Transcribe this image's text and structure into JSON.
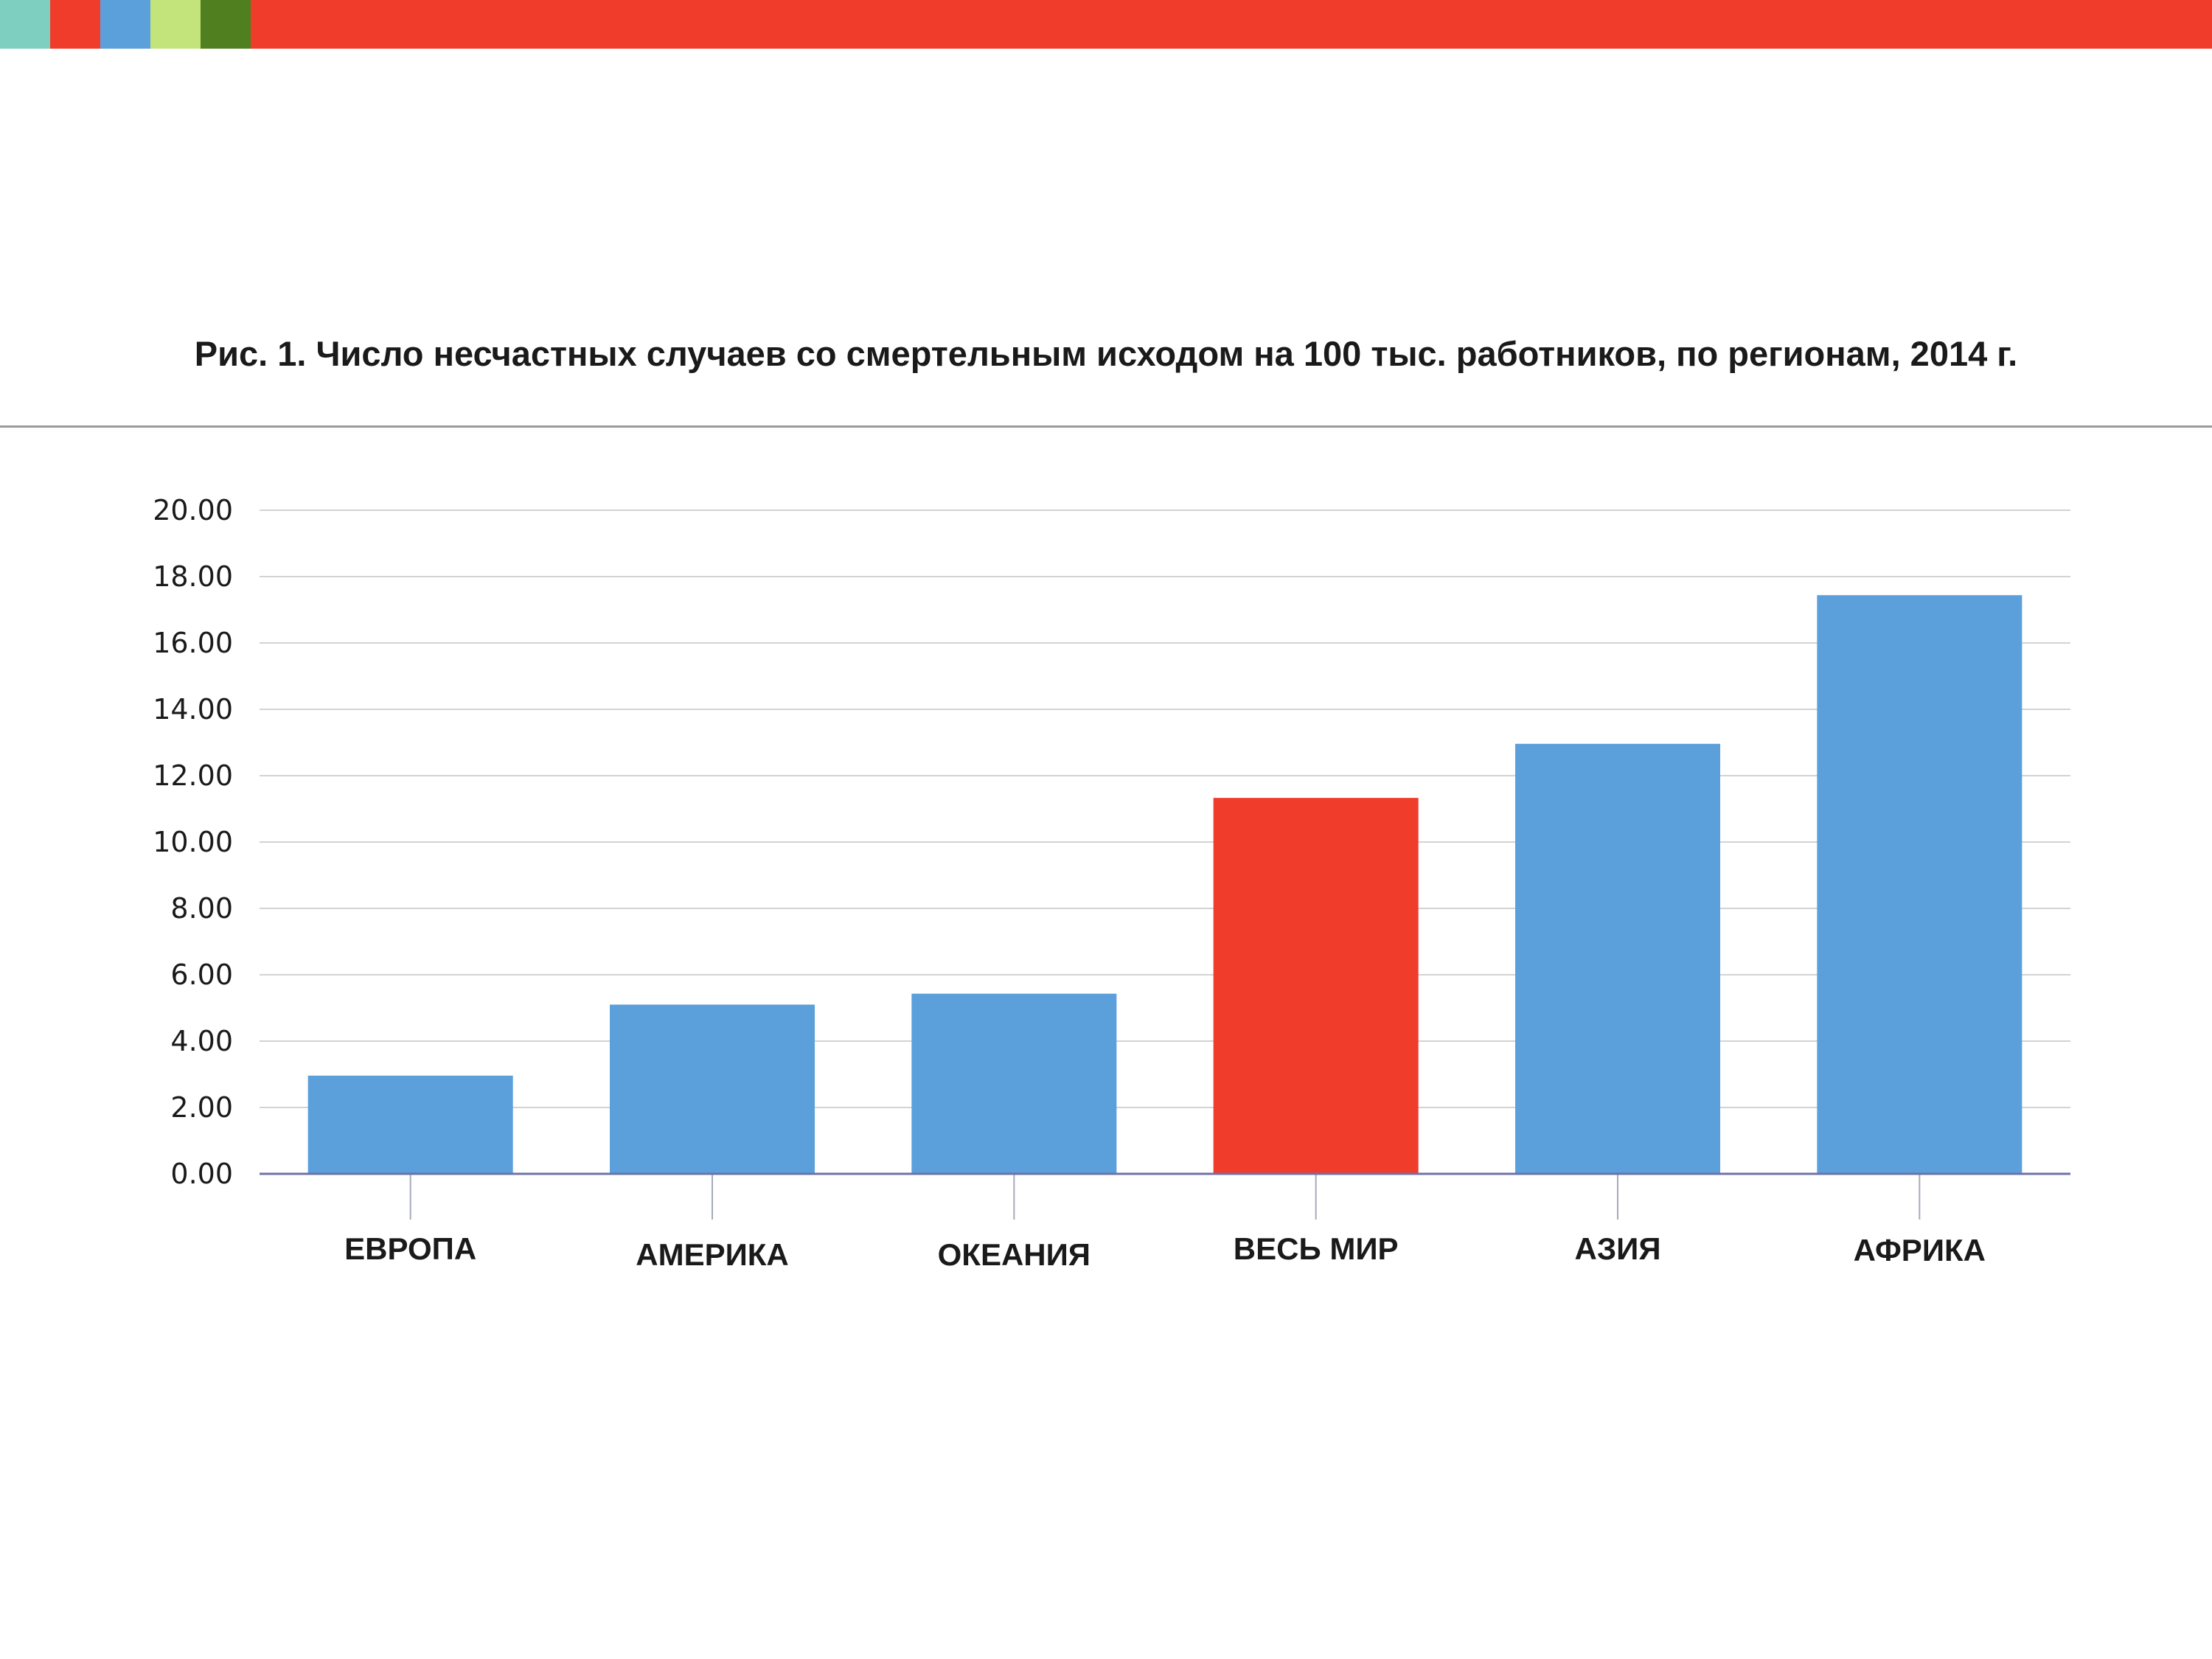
{
  "header": {
    "stripe_colors": [
      "#7ecfc0",
      "#f03c2b",
      "#5b9fdb",
      "#c3e37b",
      "#4f7f1e",
      "#f03c2b"
    ]
  },
  "chart_data": {
    "type": "bar",
    "title": "Рис. 1. Число несчастных случаев со смертельным исходом на 100 тыс. работников, по регионам, 2014 г.",
    "categories": [
      "ЕВРОПА",
      "АМЕРИКА",
      "ОКЕАНИЯ",
      "ВЕСЬ МИР",
      "АЗИЯ",
      "АФРИКА"
    ],
    "values": [
      2.96,
      5.1,
      5.43,
      11.33,
      12.96,
      17.44
    ],
    "bar_colors": [
      "#5b9fdb",
      "#5b9fdb",
      "#5b9fdb",
      "#f03c2b",
      "#5b9fdb",
      "#5b9fdb"
    ],
    "ylim": [
      0,
      20
    ],
    "yticks": [
      "0.00",
      "2.00",
      "4.00",
      "6.00",
      "8.00",
      "10.00",
      "12.00",
      "14.00",
      "16.00",
      "18.00",
      "20.00"
    ],
    "grid": true,
    "xlabel": "",
    "ylabel": ""
  }
}
